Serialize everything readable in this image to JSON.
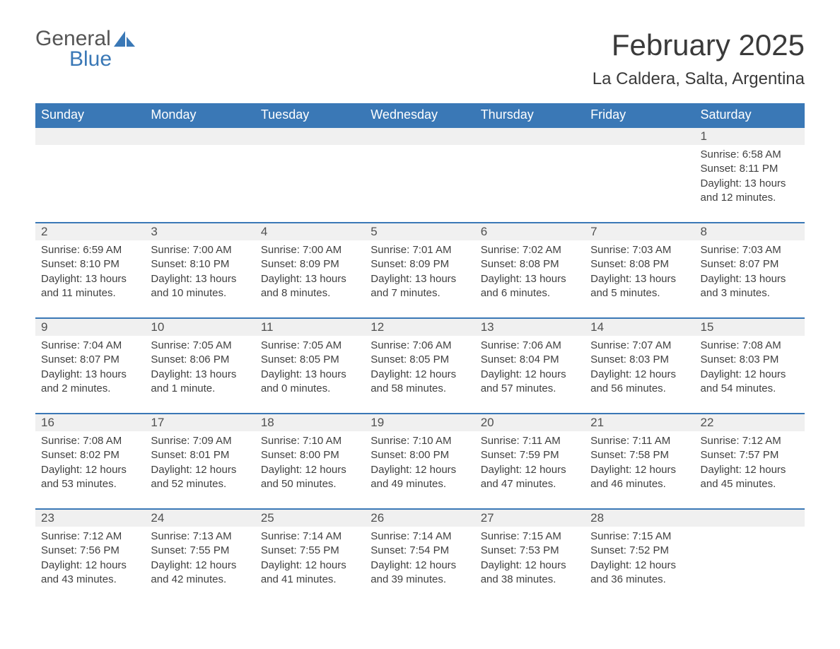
{
  "logo": {
    "general": "General",
    "blue": "Blue"
  },
  "title": "February 2025",
  "location": "La Caldera, Salta, Argentina",
  "colors": {
    "header_bg": "#3a78b6",
    "header_text": "#ffffff",
    "daynum_bg": "#f0f0f0",
    "border_top": "#3a78b6",
    "body_text": "#404040",
    "logo_gray": "#555555",
    "logo_blue": "#3a78b6",
    "page_bg": "#ffffff"
  },
  "weekdays": [
    "Sunday",
    "Monday",
    "Tuesday",
    "Wednesday",
    "Thursday",
    "Friday",
    "Saturday"
  ],
  "weeks": [
    {
      "nums": [
        "",
        "",
        "",
        "",
        "",
        "",
        "1"
      ],
      "cells": [
        "",
        "",
        "",
        "",
        "",
        "",
        "Sunrise: 6:58 AM\nSunset: 8:11 PM\nDaylight: 13 hours and 12 minutes."
      ]
    },
    {
      "nums": [
        "2",
        "3",
        "4",
        "5",
        "6",
        "7",
        "8"
      ],
      "cells": [
        "Sunrise: 6:59 AM\nSunset: 8:10 PM\nDaylight: 13 hours and 11 minutes.",
        "Sunrise: 7:00 AM\nSunset: 8:10 PM\nDaylight: 13 hours and 10 minutes.",
        "Sunrise: 7:00 AM\nSunset: 8:09 PM\nDaylight: 13 hours and 8 minutes.",
        "Sunrise: 7:01 AM\nSunset: 8:09 PM\nDaylight: 13 hours and 7 minutes.",
        "Sunrise: 7:02 AM\nSunset: 8:08 PM\nDaylight: 13 hours and 6 minutes.",
        "Sunrise: 7:03 AM\nSunset: 8:08 PM\nDaylight: 13 hours and 5 minutes.",
        "Sunrise: 7:03 AM\nSunset: 8:07 PM\nDaylight: 13 hours and 3 minutes."
      ]
    },
    {
      "nums": [
        "9",
        "10",
        "11",
        "12",
        "13",
        "14",
        "15"
      ],
      "cells": [
        "Sunrise: 7:04 AM\nSunset: 8:07 PM\nDaylight: 13 hours and 2 minutes.",
        "Sunrise: 7:05 AM\nSunset: 8:06 PM\nDaylight: 13 hours and 1 minute.",
        "Sunrise: 7:05 AM\nSunset: 8:05 PM\nDaylight: 13 hours and 0 minutes.",
        "Sunrise: 7:06 AM\nSunset: 8:05 PM\nDaylight: 12 hours and 58 minutes.",
        "Sunrise: 7:06 AM\nSunset: 8:04 PM\nDaylight: 12 hours and 57 minutes.",
        "Sunrise: 7:07 AM\nSunset: 8:03 PM\nDaylight: 12 hours and 56 minutes.",
        "Sunrise: 7:08 AM\nSunset: 8:03 PM\nDaylight: 12 hours and 54 minutes."
      ]
    },
    {
      "nums": [
        "16",
        "17",
        "18",
        "19",
        "20",
        "21",
        "22"
      ],
      "cells": [
        "Sunrise: 7:08 AM\nSunset: 8:02 PM\nDaylight: 12 hours and 53 minutes.",
        "Sunrise: 7:09 AM\nSunset: 8:01 PM\nDaylight: 12 hours and 52 minutes.",
        "Sunrise: 7:10 AM\nSunset: 8:00 PM\nDaylight: 12 hours and 50 minutes.",
        "Sunrise: 7:10 AM\nSunset: 8:00 PM\nDaylight: 12 hours and 49 minutes.",
        "Sunrise: 7:11 AM\nSunset: 7:59 PM\nDaylight: 12 hours and 47 minutes.",
        "Sunrise: 7:11 AM\nSunset: 7:58 PM\nDaylight: 12 hours and 46 minutes.",
        "Sunrise: 7:12 AM\nSunset: 7:57 PM\nDaylight: 12 hours and 45 minutes."
      ]
    },
    {
      "nums": [
        "23",
        "24",
        "25",
        "26",
        "27",
        "28",
        ""
      ],
      "cells": [
        "Sunrise: 7:12 AM\nSunset: 7:56 PM\nDaylight: 12 hours and 43 minutes.",
        "Sunrise: 7:13 AM\nSunset: 7:55 PM\nDaylight: 12 hours and 42 minutes.",
        "Sunrise: 7:14 AM\nSunset: 7:55 PM\nDaylight: 12 hours and 41 minutes.",
        "Sunrise: 7:14 AM\nSunset: 7:54 PM\nDaylight: 12 hours and 39 minutes.",
        "Sunrise: 7:15 AM\nSunset: 7:53 PM\nDaylight: 12 hours and 38 minutes.",
        "Sunrise: 7:15 AM\nSunset: 7:52 PM\nDaylight: 12 hours and 36 minutes.",
        ""
      ]
    }
  ]
}
